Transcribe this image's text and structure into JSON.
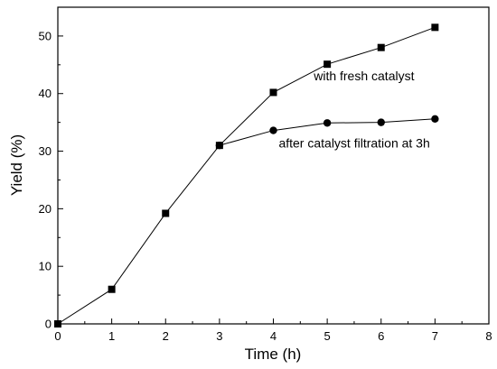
{
  "chart_data": {
    "type": "line",
    "xlabel": "Time (h)",
    "ylabel": "Yield (%)",
    "xlim": [
      0,
      8
    ],
    "ylim": [
      0,
      55
    ],
    "x_ticks": [
      0,
      1,
      2,
      3,
      4,
      5,
      6,
      7,
      8
    ],
    "y_ticks": [
      0,
      10,
      20,
      30,
      40,
      50
    ],
    "grid": false,
    "series": [
      {
        "name": "with fresh catalyst",
        "marker": "square",
        "x": [
          0,
          1,
          2,
          3,
          4,
          5,
          6,
          7
        ],
        "y": [
          0,
          6,
          19.2,
          31,
          40.2,
          45.1,
          48,
          51.5
        ]
      },
      {
        "name": "after catalyst filtration at 3h",
        "marker": "circle",
        "x": [
          3,
          4,
          5,
          6,
          7
        ],
        "y": [
          31,
          33.6,
          34.9,
          35,
          35.6
        ]
      }
    ],
    "annotations": [
      {
        "text": "with fresh catalyst",
        "x": 4.75,
        "y": 42.3
      },
      {
        "text": "after catalyst filtration at 3h",
        "x": 4.1,
        "y": 30.6
      }
    ],
    "colors": {
      "line": "#000000",
      "marker": "#000000"
    }
  }
}
